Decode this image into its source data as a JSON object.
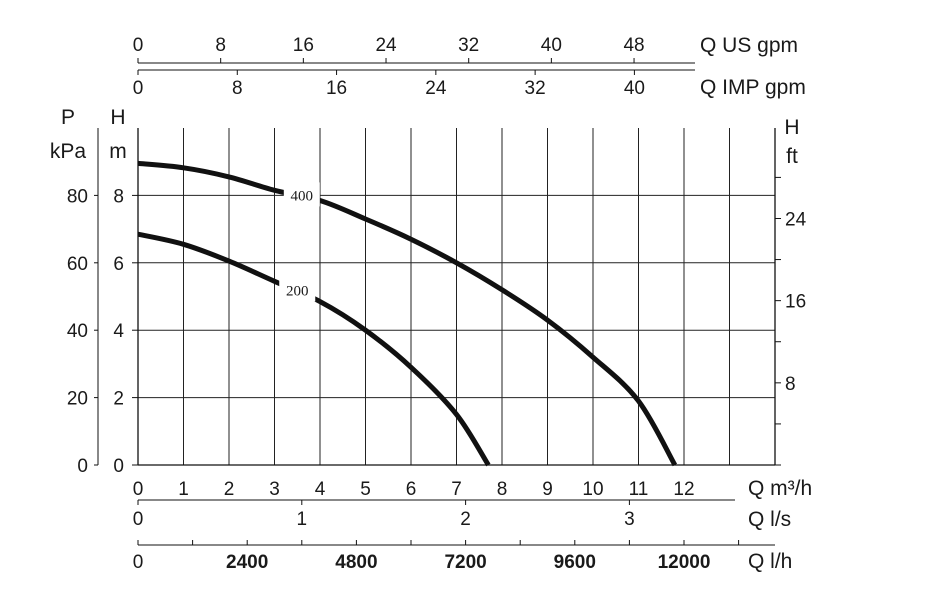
{
  "chart_data": {
    "type": "line",
    "x_unit": "m3/h",
    "xlim": [
      0,
      14
    ],
    "ylim_m": [
      0,
      10
    ],
    "series": [
      {
        "name": "400",
        "x": [
          0,
          1,
          2,
          3,
          4,
          5,
          6,
          7,
          8,
          9,
          10,
          11,
          11.8
        ],
        "values": [
          8.95,
          8.82,
          8.55,
          8.15,
          7.85,
          7.3,
          6.7,
          6.0,
          5.2,
          4.3,
          3.2,
          1.9,
          0
        ]
      },
      {
        "name": "200",
        "x": [
          0,
          1,
          2,
          3,
          4,
          5,
          6,
          7,
          7.7
        ],
        "values": [
          6.85,
          6.55,
          6.05,
          5.45,
          4.85,
          4.0,
          2.9,
          1.5,
          0
        ]
      }
    ],
    "series_label_x": [
      3.6,
      3.5
    ],
    "axes": {
      "left_outer": {
        "title_line1": "P",
        "title_line2": "kPa",
        "ticks": [
          {
            "label": "0",
            "value": 0
          },
          {
            "label": "20",
            "value": 2
          },
          {
            "label": "40",
            "value": 4
          },
          {
            "label": "60",
            "value": 6
          },
          {
            "label": "80",
            "value": 8
          }
        ]
      },
      "left_inner": {
        "title_line1": "H",
        "title_line2": "m",
        "ticks": [
          {
            "label": "0",
            "value": 0
          },
          {
            "label": "2",
            "value": 2
          },
          {
            "label": "4",
            "value": 4
          },
          {
            "label": "6",
            "value": 6
          },
          {
            "label": "8",
            "value": 8
          }
        ]
      },
      "right": {
        "title_line1": "H",
        "title_line2": "ft",
        "ticks": [
          {
            "label": "8",
            "value": 2.438
          },
          {
            "label": "16",
            "value": 4.877
          },
          {
            "label": "24",
            "value": 7.315
          }
        ],
        "minor_ticks": [
          0,
          1.219,
          2.438,
          3.658,
          4.877,
          6.096,
          7.315,
          8.534
        ]
      },
      "bottom_m3h": {
        "title": "Q m³/h",
        "ticks": [
          {
            "label": "0",
            "value": 0
          },
          {
            "label": "1",
            "value": 1
          },
          {
            "label": "2",
            "value": 2
          },
          {
            "label": "3",
            "value": 3
          },
          {
            "label": "4",
            "value": 4
          },
          {
            "label": "5",
            "value": 5
          },
          {
            "label": "6",
            "value": 6
          },
          {
            "label": "7",
            "value": 7
          },
          {
            "label": "8",
            "value": 8
          },
          {
            "label": "9",
            "value": 9
          },
          {
            "label": "10",
            "value": 10
          },
          {
            "label": "11",
            "value": 11
          },
          {
            "label": "12",
            "value": 12
          }
        ]
      },
      "bottom_ls": {
        "title": "Q l/s",
        "ticks": [
          {
            "label": "0",
            "value": 0
          },
          {
            "label": "1",
            "value": 3.6
          },
          {
            "label": "2",
            "value": 7.2
          },
          {
            "label": "3",
            "value": 10.8
          }
        ]
      },
      "bottom_lh": {
        "title": "Q l/h",
        "ticks": [
          {
            "label": "0",
            "value": 0,
            "bold": false
          },
          {
            "label": "2400",
            "value": 2.4,
            "bold": true
          },
          {
            "label": "4800",
            "value": 4.8,
            "bold": true
          },
          {
            "label": "7200",
            "value": 7.2,
            "bold": true
          },
          {
            "label": "9600",
            "value": 9.6,
            "bold": true
          },
          {
            "label": "12000",
            "value": 12.0,
            "bold": true
          }
        ],
        "minor_ticks": [
          0,
          1.2,
          2.4,
          3.6,
          4.8,
          6.0,
          7.2,
          8.4,
          9.6,
          10.8,
          12.0,
          13.2
        ]
      },
      "top_us": {
        "title": "Q US gpm",
        "ticks": [
          {
            "label": "0",
            "value": 0
          },
          {
            "label": "8",
            "value": 1.817
          },
          {
            "label": "16",
            "value": 3.634
          },
          {
            "label": "24",
            "value": 5.451
          },
          {
            "label": "32",
            "value": 7.268
          },
          {
            "label": "40",
            "value": 9.085
          },
          {
            "label": "48",
            "value": 10.902
          }
        ]
      },
      "top_imp": {
        "title": "Q IMP gpm",
        "ticks": [
          {
            "label": "0",
            "value": 0
          },
          {
            "label": "8",
            "value": 2.182
          },
          {
            "label": "16",
            "value": 4.364
          },
          {
            "label": "24",
            "value": 6.546
          },
          {
            "label": "32",
            "value": 8.728
          },
          {
            "label": "40",
            "value": 10.91
          }
        ]
      }
    },
    "grid": true
  }
}
